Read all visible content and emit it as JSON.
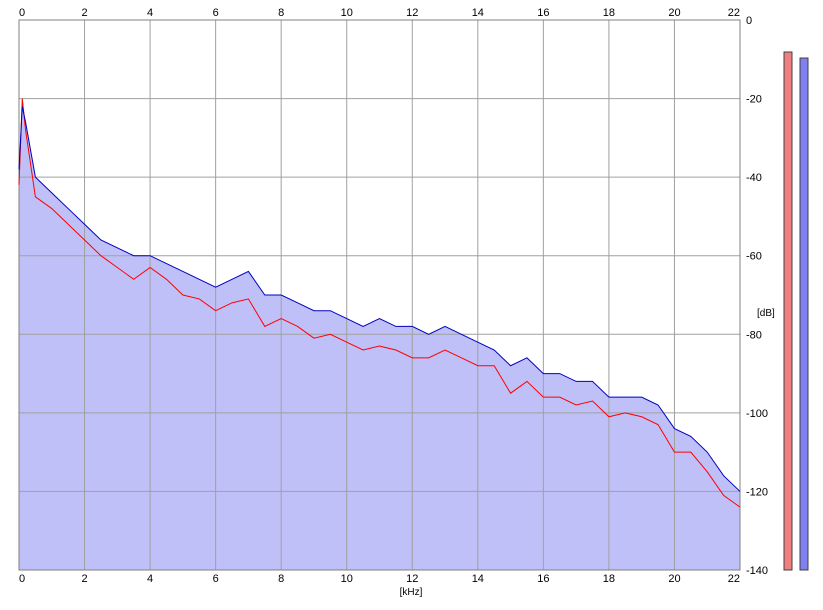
{
  "chart_data": {
    "type": "area",
    "xlabel": "[kHz]",
    "ylabel": "[dB]",
    "xlim": [
      0,
      22
    ],
    "ylim": [
      -140,
      0
    ],
    "x_ticks": [
      0,
      2,
      4,
      6,
      8,
      10,
      12,
      14,
      16,
      18,
      20,
      22
    ],
    "y_ticks": [
      -20,
      -40,
      -60,
      -80,
      -100,
      -120,
      -140
    ],
    "y_tick_labels": [
      "-20",
      "-40",
      "-60",
      "-80",
      "-100",
      "-120",
      "-140"
    ],
    "grid": true,
    "colors": {
      "fill": "#c0c0f8",
      "channel_1": "#ff0000",
      "channel_2": "#0000c0",
      "grid": "#a0a0a0",
      "meter_1": "#f08080",
      "meter_2": "#8080f0"
    },
    "series": [
      {
        "color": "#ff0000",
        "x": [
          0,
          0.1,
          0.2,
          0.5,
          1,
          1.5,
          2,
          2.5,
          3,
          3.5,
          4,
          4.5,
          5,
          5.5,
          6,
          6.5,
          7,
          7.5,
          8,
          8.5,
          9,
          9.5,
          10,
          10.5,
          11,
          11.5,
          12,
          12.5,
          13,
          13.5,
          14,
          14.5,
          15,
          15.5,
          16,
          16.5,
          17,
          17.5,
          18,
          18.5,
          19,
          19.5,
          20,
          20.5,
          21,
          21.5,
          22
        ],
        "values": [
          -42,
          -20,
          -28,
          -45,
          -48,
          -52,
          -56,
          -60,
          -63,
          -66,
          -63,
          -66,
          -70,
          -71,
          -74,
          -72,
          -71,
          -78,
          -76,
          -78,
          -81,
          -80,
          -82,
          -84,
          -83,
          -84,
          -86,
          -86,
          -84,
          -86,
          -88,
          -88,
          -95,
          -92,
          -96,
          -96,
          -98,
          -97,
          -101,
          -100,
          -101,
          -103,
          -110,
          -110,
          -115,
          -121,
          -124
        ]
      },
      {
        "color": "#0000c0",
        "x": [
          0,
          0.1,
          0.2,
          0.5,
          1,
          1.5,
          2,
          2.5,
          3,
          3.5,
          4,
          4.5,
          5,
          5.5,
          6,
          6.5,
          7,
          7.5,
          8,
          8.5,
          9,
          9.5,
          10,
          10.5,
          11,
          11.5,
          12,
          12.5,
          13,
          13.5,
          14,
          14.5,
          15,
          15.5,
          16,
          16.5,
          17,
          17.5,
          18,
          18.5,
          19,
          19.5,
          20,
          20.5,
          21,
          21.5,
          22
        ],
        "values": [
          -38,
          -22,
          -26,
          -40,
          -44,
          -48,
          -52,
          -56,
          -58,
          -60,
          -60,
          -62,
          -64,
          -66,
          -68,
          -66,
          -64,
          -70,
          -70,
          -72,
          -74,
          -74,
          -76,
          -78,
          -76,
          -78,
          -78,
          -80,
          -78,
          -80,
          -82,
          -84,
          -88,
          -86,
          -90,
          -90,
          -92,
          -92,
          -96,
          -96,
          -96,
          -98,
          -104,
          -106,
          -110,
          -116,
          -120
        ]
      }
    ]
  }
}
